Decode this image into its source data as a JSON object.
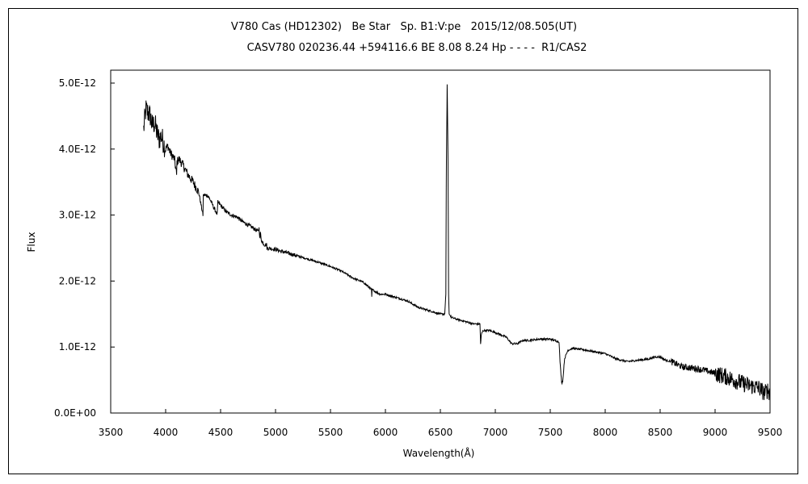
{
  "chart_data": {
    "type": "line",
    "title": "V780 Cas (HD12302)   Be Star   Sp. B1:V:pe   2015/12/08.505(UT)",
    "subtitle": "CASV780 020236.44 +594116.6 BE 8.08 8.24 Hp - - - -  R1/CAS2",
    "xlabel": "Wavelength(Å)",
    "ylabel": "Flux",
    "xlim": [
      3500,
      9500
    ],
    "ylim": [
      0,
      5e-12
    ],
    "x_ticks": [
      "3500",
      "4000",
      "4500",
      "5000",
      "5500",
      "6000",
      "6500",
      "7000",
      "7500",
      "8000",
      "8500",
      "9000",
      "9500"
    ],
    "y_ticks": [
      "0.0E+00",
      "1.0E-12",
      "2.0E-12",
      "3.0E-12",
      "4.0E-12",
      "5.0E-12"
    ],
    "grid": false,
    "series": [
      {
        "x": [
          3800,
          3820,
          3840,
          3860,
          3880,
          3900,
          3920,
          3940,
          3960,
          3980,
          4000,
          4020,
          4040,
          4060,
          4080,
          4100,
          4101,
          4102,
          4120,
          4150,
          4200,
          4250,
          4300,
          4340,
          4341,
          4342,
          4380,
          4400,
          4471,
          4472,
          4473,
          4500,
          4550,
          4600,
          4650,
          4700,
          4750,
          4800,
          4840,
          4850,
          4861,
          4862,
          4870,
          4900,
          4920,
          4921,
          4922,
          5000,
          5050,
          5100,
          5200,
          5300,
          5400,
          5500,
          5600,
          5700,
          5800,
          5875,
          5876,
          5877,
          5900,
          5950,
          6000,
          6100,
          6200,
          6280,
          6300,
          6301,
          6302,
          6400,
          6500,
          6540,
          6550,
          6555,
          6562,
          6570,
          6575,
          6580,
          6600,
          6650,
          6700,
          6800,
          6860,
          6867,
          6870,
          6875,
          6880,
          6890,
          6900,
          6950,
          7000,
          7100,
          7150,
          7200,
          7250,
          7300,
          7400,
          7500,
          7580,
          7590,
          7605,
          7615,
          7630,
          7660,
          7700,
          7800,
          7900,
          8000,
          8100,
          8200,
          8300,
          8400,
          8450,
          8500,
          8550,
          8600,
          8700,
          8800,
          8900,
          9000,
          9100,
          9200,
          9300,
          9400,
          9450,
          9480,
          9500
        ],
        "y": [
          4.3e-12,
          4.6e-12,
          4.55e-12,
          4.5e-12,
          4.35e-12,
          4.4e-12,
          4.25e-12,
          4.15e-12,
          4.2e-12,
          4.1e-12,
          4e-12,
          4.05e-12,
          3.95e-12,
          3.9e-12,
          3.85e-12,
          3.6e-12,
          3.7e-12,
          3.8e-12,
          3.85e-12,
          3.78e-12,
          3.62e-12,
          3.5e-12,
          3.35e-12,
          3e-12,
          3.15e-12,
          3.3e-12,
          3.3e-12,
          3.25e-12,
          3e-12,
          3.1e-12,
          3.2e-12,
          3.15e-12,
          3.05e-12,
          3e-12,
          2.97e-12,
          2.9e-12,
          2.85e-12,
          2.8e-12,
          2.75e-12,
          2.8e-12,
          2.6e-12,
          2.75e-12,
          2.62e-12,
          2.55e-12,
          2.55e-12,
          2.45e-12,
          2.5e-12,
          2.48e-12,
          2.45e-12,
          2.43e-12,
          2.38e-12,
          2.33e-12,
          2.28e-12,
          2.22e-12,
          2.15e-12,
          2.05e-12,
          1.98e-12,
          1.87e-12,
          1.75e-12,
          1.87e-12,
          1.85e-12,
          1.8e-12,
          1.8e-12,
          1.75e-12,
          1.7e-12,
          1.62e-12,
          1.6e-12,
          1.52e-12,
          1.6e-12,
          1.55e-12,
          1.5e-12,
          1.5e-12,
          1.8e-12,
          3.8e-12,
          4.98e-12,
          3.8e-12,
          1.8e-12,
          1.5e-12,
          1.45e-12,
          1.42e-12,
          1.4e-12,
          1.35e-12,
          1.35e-12,
          1e-12,
          1.15e-12,
          1.2e-12,
          1.22e-12,
          1.25e-12,
          1.25e-12,
          1.25e-12,
          1.22e-12,
          1.15e-12,
          1.05e-12,
          1.05e-12,
          1.1e-12,
          1.1e-12,
          1.12e-12,
          1.12e-12,
          1.08e-12,
          7.5e-13,
          4.5e-13,
          5e-13,
          8.2e-13,
          9.5e-13,
          9.8e-13,
          9.6e-13,
          9.3e-13,
          9e-13,
          8.2e-13,
          7.8e-13,
          8e-13,
          8.2e-13,
          8.5e-13,
          8.5e-13,
          8e-13,
          7.8e-13,
          7e-13,
          6.8e-13,
          6.5e-13,
          6e-13,
          5.5e-13,
          4.8e-13,
          4.2e-13,
          3.8e-13,
          3e-13,
          3.5e-13,
          3e-13
        ]
      }
    ]
  }
}
